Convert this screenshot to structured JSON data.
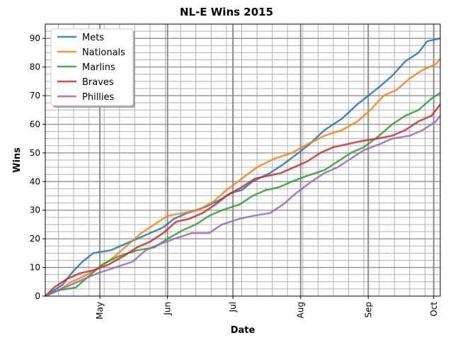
{
  "chart_data": {
    "type": "line",
    "title": "NL-E Wins 2015",
    "xlabel": "Date",
    "ylabel": "Wins",
    "x_start": "2015-04-06",
    "x_end": "2015-10-04",
    "ylim": [
      0,
      95
    ],
    "y_ticks": [
      0,
      10,
      20,
      30,
      40,
      50,
      60,
      70,
      80,
      90
    ],
    "x_ticks": [
      {
        "date": "2015-05-01",
        "label": "May"
      },
      {
        "date": "2015-06-01",
        "label": "Jun"
      },
      {
        "date": "2015-07-01",
        "label": "Jul"
      },
      {
        "date": "2015-08-01",
        "label": "Aug"
      },
      {
        "date": "2015-09-01",
        "label": "Sep"
      },
      {
        "date": "2015-10-01",
        "label": "Oct"
      }
    ],
    "grid": true,
    "legend": "top-left",
    "series": [
      {
        "name": "Mets",
        "color": "#1f77b4",
        "points": [
          [
            "2015-04-06",
            0
          ],
          [
            "2015-04-10",
            2
          ],
          [
            "2015-04-14",
            4
          ],
          [
            "2015-04-18",
            8
          ],
          [
            "2015-04-23",
            12
          ],
          [
            "2015-04-28",
            15
          ],
          [
            "2015-05-06",
            16
          ],
          [
            "2015-05-12",
            18
          ],
          [
            "2015-05-18",
            20
          ],
          [
            "2015-05-24",
            22
          ],
          [
            "2015-05-30",
            24
          ],
          [
            "2015-06-04",
            27
          ],
          [
            "2015-06-10",
            29
          ],
          [
            "2015-06-18",
            31
          ],
          [
            "2015-06-26",
            34
          ],
          [
            "2015-06-30",
            36
          ],
          [
            "2015-07-05",
            37
          ],
          [
            "2015-07-10",
            40
          ],
          [
            "2015-07-18",
            43
          ],
          [
            "2015-07-24",
            46
          ],
          [
            "2015-07-31",
            50
          ],
          [
            "2015-08-05",
            53
          ],
          [
            "2015-08-12",
            58
          ],
          [
            "2015-08-20",
            62
          ],
          [
            "2015-08-27",
            67
          ],
          [
            "2015-09-01",
            70
          ],
          [
            "2015-09-06",
            73
          ],
          [
            "2015-09-12",
            77
          ],
          [
            "2015-09-18",
            82
          ],
          [
            "2015-09-24",
            85
          ],
          [
            "2015-09-28",
            89
          ],
          [
            "2015-10-04",
            90
          ]
        ]
      },
      {
        "name": "Nationals",
        "color": "#ff7f0e",
        "points": [
          [
            "2015-04-06",
            0
          ],
          [
            "2015-04-12",
            2
          ],
          [
            "2015-04-18",
            5
          ],
          [
            "2015-04-24",
            7
          ],
          [
            "2015-05-01",
            10
          ],
          [
            "2015-05-08",
            14
          ],
          [
            "2015-05-14",
            18
          ],
          [
            "2015-05-20",
            22
          ],
          [
            "2015-05-26",
            25
          ],
          [
            "2015-06-01",
            28
          ],
          [
            "2015-06-08",
            29
          ],
          [
            "2015-06-15",
            30
          ],
          [
            "2015-06-22",
            33
          ],
          [
            "2015-06-28",
            37
          ],
          [
            "2015-07-05",
            41
          ],
          [
            "2015-07-12",
            45
          ],
          [
            "2015-07-20",
            48
          ],
          [
            "2015-07-28",
            50
          ],
          [
            "2015-08-04",
            53
          ],
          [
            "2015-08-12",
            56
          ],
          [
            "2015-08-20",
            58
          ],
          [
            "2015-08-27",
            61
          ],
          [
            "2015-09-02",
            65
          ],
          [
            "2015-09-08",
            70
          ],
          [
            "2015-09-14",
            72
          ],
          [
            "2015-09-20",
            76
          ],
          [
            "2015-09-26",
            79
          ],
          [
            "2015-10-02",
            81
          ],
          [
            "2015-10-04",
            83
          ]
        ]
      },
      {
        "name": "Marlins",
        "color": "#2ca02c",
        "points": [
          [
            "2015-04-06",
            0
          ],
          [
            "2015-04-12",
            2
          ],
          [
            "2015-04-20",
            3
          ],
          [
            "2015-04-26",
            7
          ],
          [
            "2015-05-02",
            11
          ],
          [
            "2015-05-10",
            14
          ],
          [
            "2015-05-18",
            16
          ],
          [
            "2015-05-26",
            17
          ],
          [
            "2015-06-01",
            20
          ],
          [
            "2015-06-08",
            23
          ],
          [
            "2015-06-14",
            25
          ],
          [
            "2015-06-20",
            28
          ],
          [
            "2015-06-26",
            30
          ],
          [
            "2015-07-04",
            32
          ],
          [
            "2015-07-10",
            35
          ],
          [
            "2015-07-16",
            37
          ],
          [
            "2015-07-22",
            38
          ],
          [
            "2015-07-28",
            40
          ],
          [
            "2015-08-04",
            42
          ],
          [
            "2015-08-12",
            44
          ],
          [
            "2015-08-18",
            47
          ],
          [
            "2015-08-24",
            50
          ],
          [
            "2015-08-30",
            52
          ],
          [
            "2015-09-06",
            56
          ],
          [
            "2015-09-12",
            60
          ],
          [
            "2015-09-18",
            63
          ],
          [
            "2015-09-24",
            65
          ],
          [
            "2015-09-30",
            69
          ],
          [
            "2015-10-04",
            71
          ]
        ]
      },
      {
        "name": "Braves",
        "color": "#d62728",
        "points": [
          [
            "2015-04-06",
            0
          ],
          [
            "2015-04-10",
            3
          ],
          [
            "2015-04-16",
            6
          ],
          [
            "2015-04-22",
            8
          ],
          [
            "2015-04-28",
            9
          ],
          [
            "2015-05-05",
            11
          ],
          [
            "2015-05-12",
            14
          ],
          [
            "2015-05-18",
            17
          ],
          [
            "2015-05-24",
            19
          ],
          [
            "2015-05-30",
            22
          ],
          [
            "2015-06-05",
            26
          ],
          [
            "2015-06-11",
            27
          ],
          [
            "2015-06-17",
            29
          ],
          [
            "2015-06-23",
            32
          ],
          [
            "2015-06-28",
            35
          ],
          [
            "2015-07-05",
            38
          ],
          [
            "2015-07-11",
            41
          ],
          [
            "2015-07-17",
            42
          ],
          [
            "2015-07-23",
            43
          ],
          [
            "2015-07-29",
            45
          ],
          [
            "2015-08-04",
            47
          ],
          [
            "2015-08-10",
            50
          ],
          [
            "2015-08-16",
            52
          ],
          [
            "2015-08-22",
            53
          ],
          [
            "2015-08-28",
            54
          ],
          [
            "2015-09-05",
            55
          ],
          [
            "2015-09-12",
            56
          ],
          [
            "2015-09-18",
            58
          ],
          [
            "2015-09-24",
            61
          ],
          [
            "2015-09-30",
            63
          ],
          [
            "2015-10-04",
            67
          ]
        ]
      },
      {
        "name": "Phillies",
        "color": "#9467bd",
        "points": [
          [
            "2015-04-06",
            0
          ],
          [
            "2015-04-12",
            2
          ],
          [
            "2015-04-18",
            4
          ],
          [
            "2015-04-24",
            6
          ],
          [
            "2015-04-30",
            8
          ],
          [
            "2015-05-08",
            10
          ],
          [
            "2015-05-16",
            12
          ],
          [
            "2015-05-22",
            16
          ],
          [
            "2015-05-28",
            18
          ],
          [
            "2015-06-04",
            20
          ],
          [
            "2015-06-12",
            22
          ],
          [
            "2015-06-20",
            22
          ],
          [
            "2015-06-26",
            25
          ],
          [
            "2015-07-04",
            27
          ],
          [
            "2015-07-10",
            28
          ],
          [
            "2015-07-18",
            29
          ],
          [
            "2015-07-24",
            32
          ],
          [
            "2015-07-30",
            36
          ],
          [
            "2015-08-06",
            40
          ],
          [
            "2015-08-12",
            43
          ],
          [
            "2015-08-18",
            45
          ],
          [
            "2015-08-24",
            48
          ],
          [
            "2015-08-30",
            51
          ],
          [
            "2015-09-06",
            53
          ],
          [
            "2015-09-12",
            55
          ],
          [
            "2015-09-20",
            56
          ],
          [
            "2015-09-26",
            58
          ],
          [
            "2015-10-02",
            61
          ],
          [
            "2015-10-04",
            63
          ]
        ]
      }
    ]
  }
}
